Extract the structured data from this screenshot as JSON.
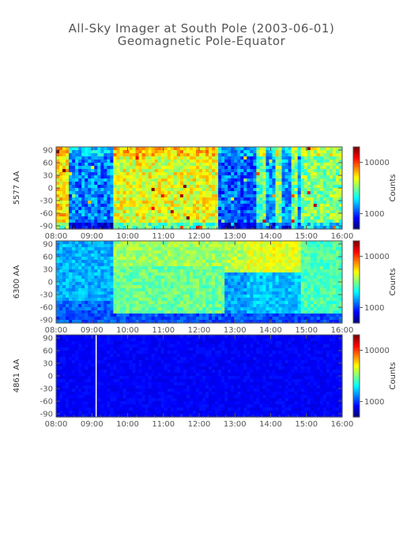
{
  "header": {
    "title": "All-Sky Imager at South Pole (2003-06-01)",
    "subtitle": "Geomagnetic Pole-Equator"
  },
  "chart_data": [
    {
      "type": "heatmap",
      "panel": "5577",
      "ylabel": "5577 AA",
      "x_ticks": [
        "08:00",
        "09:00",
        "10:00",
        "11:00",
        "12:00",
        "13:00",
        "14:00",
        "15:00",
        "16:00"
      ],
      "y_ticks": [
        "90",
        "60",
        "30",
        "0",
        "-30",
        "-60",
        "-90"
      ],
      "xlim": [
        "08:00",
        "16:00"
      ],
      "ylim": [
        -90,
        90
      ],
      "colorbar": {
        "label": "Counts",
        "ticks": [
          "10000",
          "1000"
        ],
        "scale": "log",
        "range": [
          500,
          20000
        ]
      },
      "description_levels": [
        {
          "from": "08:00",
          "to": "08:20",
          "level": "high"
        },
        {
          "from": "08:20",
          "to": "09:30",
          "level": "low"
        },
        {
          "from": "09:30",
          "to": "12:30",
          "level": "high"
        },
        {
          "from": "12:30",
          "to": "13:30",
          "level": "low"
        },
        {
          "from": "13:30",
          "to": "15:30",
          "level": "mixed"
        },
        {
          "from": "15:30",
          "to": "16:00",
          "level": "medium"
        }
      ]
    },
    {
      "type": "heatmap",
      "panel": "6300",
      "ylabel": "6300 AA",
      "x_ticks": [
        "08:00",
        "09:00",
        "10:00",
        "11:00",
        "12:00",
        "13:00",
        "14:00",
        "15:00",
        "16:00"
      ],
      "y_ticks": [
        "90",
        "60",
        "30",
        "0",
        "-30",
        "-60",
        "-90"
      ],
      "xlim": [
        "08:00",
        "16:00"
      ],
      "ylim": [
        -90,
        90
      ],
      "colorbar": {
        "label": "Counts",
        "ticks": [
          "10000",
          "1000"
        ],
        "scale": "log",
        "range": [
          500,
          20000
        ]
      }
    },
    {
      "type": "heatmap",
      "panel": "4861",
      "ylabel": "4861 AA",
      "x_ticks": [
        "08:00",
        "09:00",
        "10:00",
        "11:00",
        "12:00",
        "13:00",
        "14:00",
        "15:00",
        "16:00"
      ],
      "y_ticks": [
        "90",
        "60",
        "30",
        "0",
        "-30",
        "-60",
        "-90"
      ],
      "xlim": [
        "08:00",
        "16:00"
      ],
      "ylim": [
        -90,
        90
      ],
      "colorbar": {
        "label": "Counts",
        "ticks": [
          "10000",
          "1000"
        ],
        "scale": "log",
        "range": [
          500,
          20000
        ]
      }
    }
  ],
  "colors": {
    "axis": "#555555",
    "title": "#555555",
    "background": "#ffffff"
  }
}
